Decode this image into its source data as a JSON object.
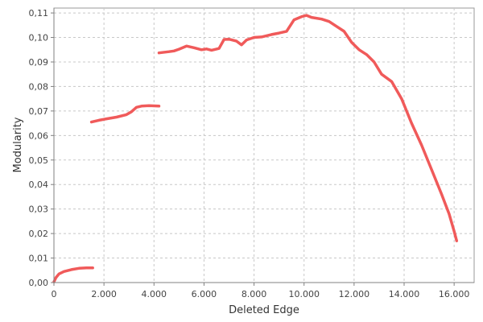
{
  "chart_data": {
    "type": "line",
    "title": "",
    "xlabel": "Deleted Edge",
    "ylabel": "Modularity",
    "xlim": [
      0,
      16800
    ],
    "ylim": [
      0,
      0.112
    ],
    "x_ticks": [
      0,
      2000,
      4000,
      6000,
      8000,
      10000,
      12000,
      14000,
      16000
    ],
    "x_tick_labels": [
      "0",
      "2.000",
      "4.000",
      "6.000",
      "8.000",
      "10.000",
      "12.000",
      "14.000",
      "16.000"
    ],
    "y_ticks": [
      0,
      0.01,
      0.02,
      0.03,
      0.04,
      0.05,
      0.06,
      0.07,
      0.08,
      0.09,
      0.1,
      0.11
    ],
    "y_tick_labels": [
      "0,00",
      "0,01",
      "0,02",
      "0,03",
      "0,04",
      "0,05",
      "0,06",
      "0,07",
      "0,08",
      "0,09",
      "0,10",
      "0,11"
    ],
    "grid": true,
    "legend": "none",
    "colors": {
      "series": "#f05a5a"
    },
    "series": [
      {
        "segments": [
          [
            [
              0,
              0.0003
            ],
            [
              80,
              0.002
            ],
            [
              200,
              0.0035
            ],
            [
              400,
              0.0045
            ],
            [
              700,
              0.0053
            ],
            [
              1000,
              0.0058
            ],
            [
              1300,
              0.006
            ],
            [
              1550,
              0.006
            ]
          ],
          [
            [
              1500,
              0.0655
            ],
            [
              1800,
              0.0662
            ],
            [
              2100,
              0.0668
            ],
            [
              2500,
              0.0675
            ],
            [
              2900,
              0.0685
            ],
            [
              3100,
              0.0697
            ],
            [
              3300,
              0.0715
            ],
            [
              3500,
              0.072
            ],
            [
              3800,
              0.0722
            ],
            [
              4200,
              0.072
            ]
          ],
          [
            [
              4200,
              0.0937
            ],
            [
              4600,
              0.0942
            ],
            [
              4800,
              0.0945
            ],
            [
              5000,
              0.0952
            ],
            [
              5300,
              0.0965
            ],
            [
              5600,
              0.0958
            ],
            [
              5900,
              0.095
            ],
            [
              6100,
              0.0953
            ],
            [
              6300,
              0.0948
            ],
            [
              6600,
              0.0955
            ],
            [
              6800,
              0.0992
            ],
            [
              7000,
              0.0993
            ],
            [
              7300,
              0.0985
            ],
            [
              7500,
              0.097
            ],
            [
              7700,
              0.099
            ],
            [
              8000,
              0.1
            ],
            [
              8300,
              0.1002
            ],
            [
              8700,
              0.1012
            ],
            [
              9000,
              0.1018
            ],
            [
              9300,
              0.1025
            ],
            [
              9600,
              0.1072
            ],
            [
              9900,
              0.1085
            ],
            [
              10100,
              0.109
            ],
            [
              10300,
              0.1082
            ],
            [
              10700,
              0.1075
            ],
            [
              11000,
              0.1065
            ],
            [
              11300,
              0.1045
            ],
            [
              11600,
              0.1025
            ],
            [
              11900,
              0.098
            ],
            [
              12200,
              0.095
            ],
            [
              12500,
              0.093
            ],
            [
              12800,
              0.09
            ],
            [
              13100,
              0.085
            ],
            [
              13500,
              0.082
            ],
            [
              13900,
              0.075
            ],
            [
              14300,
              0.065
            ],
            [
              14700,
              0.056
            ],
            [
              15100,
              0.046
            ],
            [
              15500,
              0.036
            ],
            [
              15800,
              0.028
            ],
            [
              16000,
              0.021
            ],
            [
              16100,
              0.017
            ]
          ]
        ]
      }
    ]
  }
}
